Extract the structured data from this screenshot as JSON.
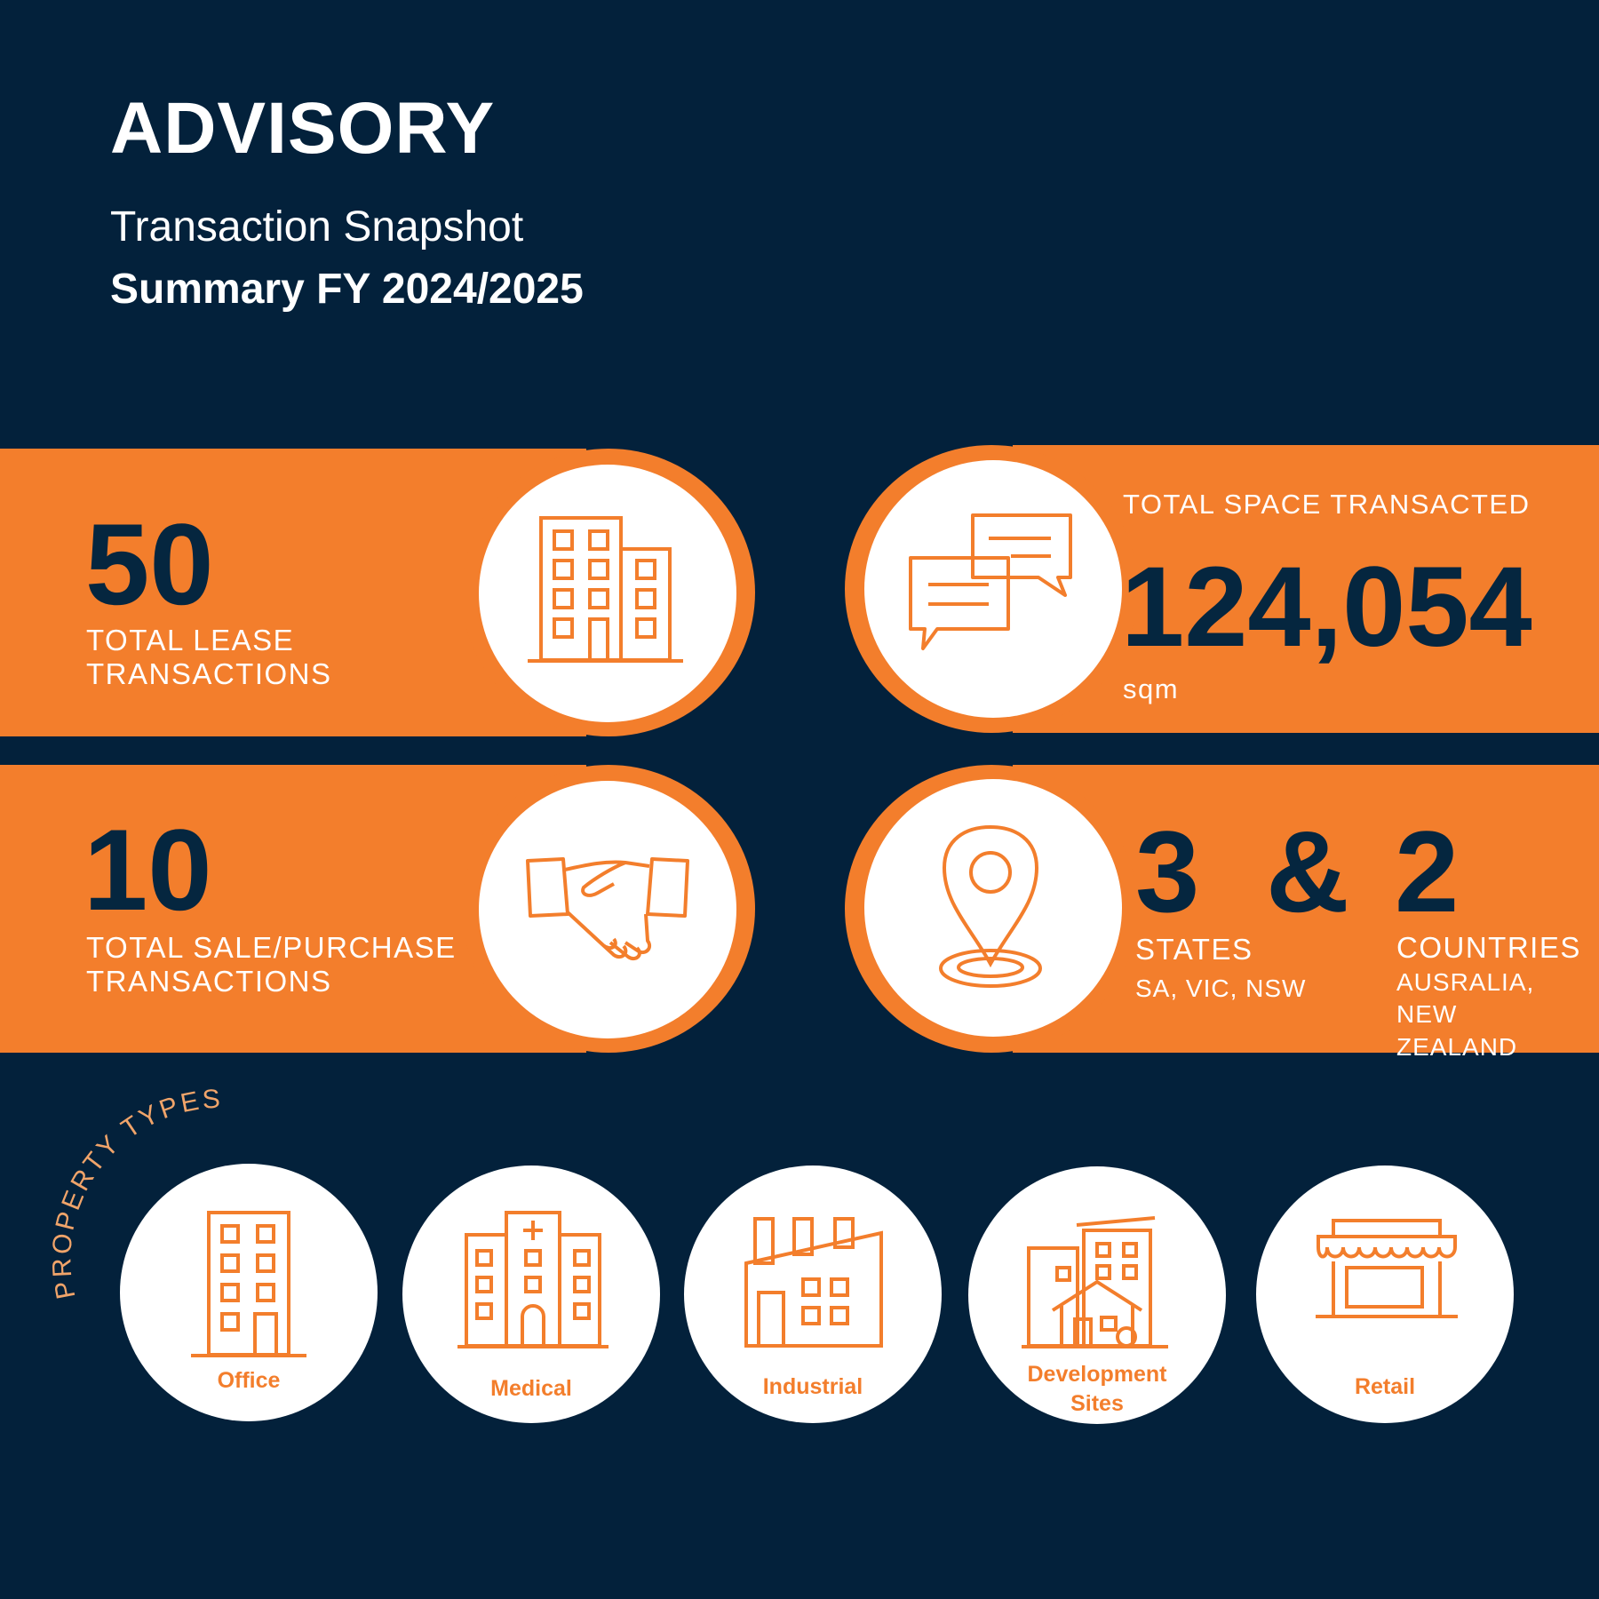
{
  "header": {
    "title": "ADVISORY",
    "subtitle": "Transaction Snapshot",
    "period": "Summary FY 2024/2025"
  },
  "stats": {
    "lease": {
      "value": "50",
      "label_line1": "TOTAL LEASE",
      "label_line2": "TRANSACTIONS",
      "icon": "office-building-icon"
    },
    "sale": {
      "value": "10",
      "label_line1": "TOTAL SALE/PURCHASE",
      "label_line2": "TRANSACTIONS",
      "icon": "handshake-icon"
    },
    "space": {
      "heading": "TOTAL SPACE TRANSACTED",
      "value": "124,054",
      "unit": "sqm",
      "icon": "chat-bubbles-icon"
    },
    "regions": {
      "states_value": "3",
      "ampersand": "&",
      "countries_value": "2",
      "states_label": "STATES",
      "states_list": "SA, VIC, NSW",
      "countries_label": "COUNTRIES",
      "countries_list_line1": "AUSRALIA, NEW",
      "countries_list_line2": "ZEALAND",
      "icon": "location-pin-icon"
    }
  },
  "property_types": {
    "heading": "PROPERTY TYPES",
    "items": [
      {
        "label": "Office",
        "label2": "",
        "icon": "office-icon"
      },
      {
        "label": "Medical",
        "label2": "",
        "icon": "medical-building-icon"
      },
      {
        "label": "Industrial",
        "label2": "",
        "icon": "factory-icon"
      },
      {
        "label": "Development",
        "label2": "Sites",
        "icon": "development-sites-icon"
      },
      {
        "label": "Retail",
        "label2": "",
        "icon": "retail-store-icon"
      }
    ]
  },
  "colors": {
    "background": "#03213b",
    "accent": "#f37e2c",
    "number": "#05263f",
    "white": "#ffffff"
  }
}
